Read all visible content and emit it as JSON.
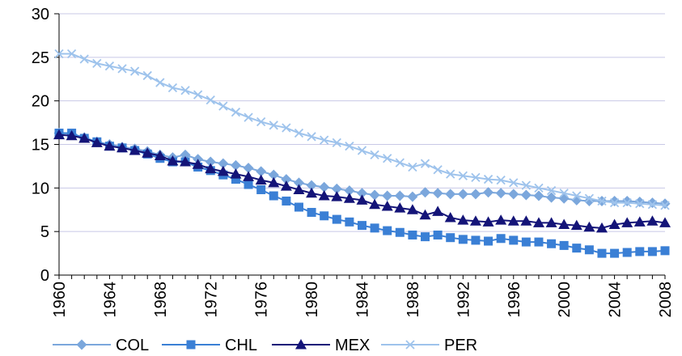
{
  "chart_data": {
    "type": "line",
    "title": "",
    "xlabel": "",
    "ylabel": "",
    "ylim": [
      0,
      30
    ],
    "yticks": [
      0,
      5,
      10,
      15,
      20,
      25,
      30
    ],
    "xlim": [
      1960,
      2008
    ],
    "xticks": [
      1960,
      1964,
      1968,
      1972,
      1976,
      1980,
      1984,
      1988,
      1992,
      1996,
      2000,
      2004,
      2008
    ],
    "grid": "horizontal",
    "legend_position": "bottom",
    "x": [
      1960,
      1961,
      1962,
      1963,
      1964,
      1965,
      1966,
      1967,
      1968,
      1969,
      1970,
      1971,
      1972,
      1973,
      1974,
      1975,
      1976,
      1977,
      1978,
      1979,
      1980,
      1981,
      1982,
      1983,
      1984,
      1985,
      1986,
      1987,
      1988,
      1989,
      1990,
      1991,
      1992,
      1993,
      1994,
      1995,
      1996,
      1997,
      1998,
      1999,
      2000,
      2001,
      2002,
      2003,
      2004,
      2005,
      2006,
      2007,
      2008
    ],
    "series": [
      {
        "name": "COL",
        "color": "#7ba7dc",
        "marker": "diamond",
        "values": [
          16.3,
          16.2,
          15.8,
          15.3,
          15.0,
          14.7,
          14.5,
          14.2,
          13.8,
          13.5,
          13.8,
          13.3,
          13.0,
          12.8,
          12.6,
          12.3,
          11.9,
          11.5,
          11.0,
          10.6,
          10.3,
          10.1,
          9.9,
          9.7,
          9.4,
          9.2,
          9.1,
          9.1,
          9.0,
          9.5,
          9.4,
          9.3,
          9.3,
          9.3,
          9.5,
          9.4,
          9.3,
          9.2,
          9.1,
          8.9,
          8.8,
          8.6,
          8.5,
          8.5,
          8.5,
          8.5,
          8.4,
          8.3,
          8.2
        ]
      },
      {
        "name": "CHL",
        "color": "#3a7fd5",
        "marker": "square",
        "values": [
          16.3,
          16.3,
          15.7,
          15.3,
          14.8,
          14.6,
          14.3,
          13.9,
          13.4,
          13.0,
          13.0,
          12.4,
          12.0,
          11.5,
          11.0,
          10.4,
          9.8,
          9.1,
          8.5,
          7.8,
          7.2,
          6.8,
          6.4,
          6.1,
          5.7,
          5.4,
          5.1,
          4.9,
          4.6,
          4.4,
          4.6,
          4.3,
          4.1,
          4.0,
          3.9,
          4.2,
          4.0,
          3.8,
          3.8,
          3.6,
          3.4,
          3.1,
          2.9,
          2.5,
          2.5,
          2.6,
          2.7,
          2.7,
          2.8
        ]
      },
      {
        "name": "MEX",
        "color": "#141478",
        "marker": "triangle",
        "values": [
          16.1,
          16.0,
          15.7,
          15.2,
          14.8,
          14.6,
          14.3,
          14.0,
          13.7,
          13.1,
          13.0,
          12.7,
          12.2,
          11.9,
          11.6,
          11.3,
          10.9,
          10.6,
          10.2,
          9.8,
          9.4,
          9.1,
          9.0,
          8.8,
          8.6,
          8.1,
          7.9,
          7.7,
          7.5,
          6.9,
          7.3,
          6.6,
          6.3,
          6.2,
          6.1,
          6.3,
          6.2,
          6.2,
          6.0,
          6.0,
          5.8,
          5.7,
          5.5,
          5.4,
          5.8,
          6.0,
          6.1,
          6.2,
          6.0
        ]
      },
      {
        "name": "PER",
        "color": "#9ec3ec",
        "marker": "cross",
        "values": [
          25.4,
          25.4,
          24.8,
          24.3,
          24.0,
          23.7,
          23.4,
          22.9,
          22.1,
          21.5,
          21.2,
          20.7,
          20.1,
          19.4,
          18.7,
          18.1,
          17.6,
          17.2,
          16.9,
          16.3,
          15.9,
          15.5,
          15.2,
          14.8,
          14.3,
          13.8,
          13.4,
          12.9,
          12.4,
          12.8,
          12.1,
          11.6,
          11.4,
          11.2,
          11.0,
          10.9,
          10.6,
          10.3,
          10.0,
          9.7,
          9.4,
          9.1,
          8.8,
          8.5,
          8.3,
          8.3,
          8.2,
          8.1,
          8.0
        ]
      }
    ]
  }
}
